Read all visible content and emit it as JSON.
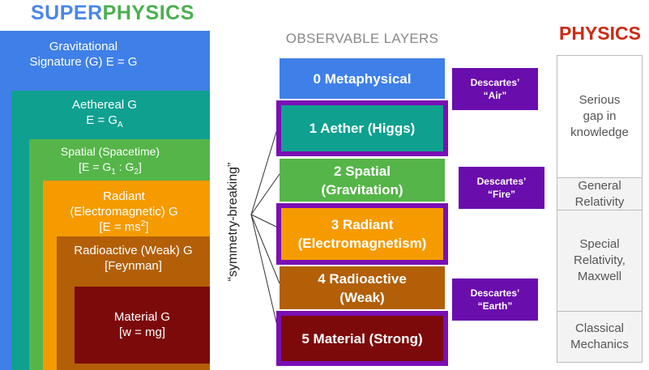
{
  "superphysics": {
    "title_part1": "SUPER",
    "title_part2": "PHYSICS"
  },
  "nested": {
    "grav": {
      "line1": "Gravitational",
      "line2": "Signature (G) E = G"
    },
    "aeth": {
      "line1": "Aethereal G",
      "line2_prefix": "E = G",
      "line2_sub": "A"
    },
    "spat": {
      "line1": "Spatial (Spacetime)",
      "line2_a": "[E = G",
      "sub1": "1",
      "line2_b": " : G",
      "sub2": "2",
      "line2_c": "]"
    },
    "rad": {
      "line1": "Radiant",
      "line2": "(Electromagnetic) G",
      "line3_a": "[E = ms",
      "sup": "2",
      "line3_b": "]"
    },
    "radio": {
      "line1": "Radioactive (Weak) G",
      "line2": "[Feynman]"
    },
    "mat": {
      "line1": "Material G",
      "line2": "[w = mg]"
    }
  },
  "symmetry_label": "“symmetry-breaking”",
  "observable": {
    "title": "OBSERVABLE LAYERS",
    "layers": [
      {
        "line1": "0 Metaphysical",
        "line2": ""
      },
      {
        "line1": "1 Aether (Higgs)",
        "line2": ""
      },
      {
        "line1": "2 Spatial",
        "line2": "(Gravitation)"
      },
      {
        "line1": "3 Radiant",
        "line2": "(Electromagnetism)"
      },
      {
        "line1": "4 Radioactive",
        "line2": "(Weak)"
      },
      {
        "line1": "5 Material (Strong)",
        "line2": ""
      }
    ]
  },
  "callouts": [
    {
      "line1": "Descartes’",
      "line2": "“Air”"
    },
    {
      "line1": "Descartes’",
      "line2": "“Fire”"
    },
    {
      "line1": "Descartes’",
      "line2": "“Earth”"
    }
  ],
  "physics": {
    "title": "PHYSICS",
    "rows": [
      {
        "lines": [
          "Serious",
          "gap in",
          "knowledge"
        ]
      },
      {
        "lines": [
          "General",
          "Relativity"
        ]
      },
      {
        "lines": [
          "Special",
          "Relativity,",
          "Maxwell"
        ]
      },
      {
        "lines": [
          "Classical",
          "Mechanics"
        ]
      }
    ]
  },
  "colors": {
    "gravitational": "#3f80e8",
    "aethereal": "#0fa090",
    "spatial": "#55b548",
    "radiant": "#f59b00",
    "radioactive": "#b25f08",
    "material": "#7d0a0a",
    "highlight": "#7a0fb5",
    "callout": "#6a0dad",
    "physics_title": "#cc2a14"
  }
}
